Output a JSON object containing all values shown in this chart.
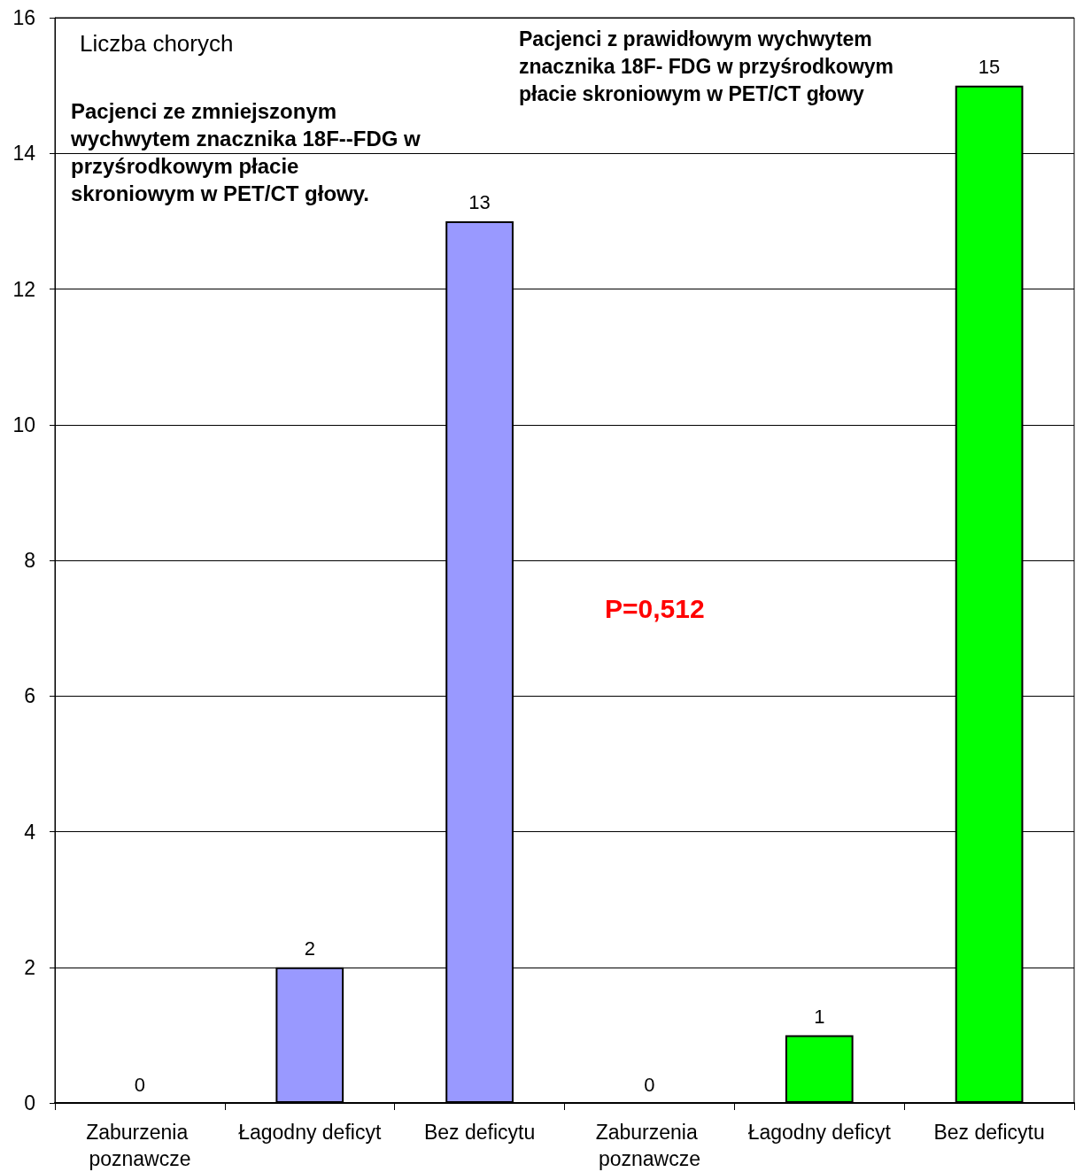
{
  "chart_data": {
    "type": "bar",
    "ylabel": "Liczba chorych",
    "categories": [
      "Zaburzenia poznawcze",
      "Łagodny deficyt",
      "Bez deficytu",
      "Zaburzenia poznawcze",
      "Łagodny deficyt",
      "Bez deficytu"
    ],
    "values": [
      0,
      2,
      13,
      0,
      1,
      15
    ],
    "colors": [
      "#9999ff",
      "#9999ff",
      "#9999ff",
      "#00ff00",
      "#00ff00",
      "#00ff00"
    ],
    "ylim": [
      0,
      16
    ],
    "yticks": [
      0,
      2,
      4,
      6,
      8,
      10,
      12,
      14,
      16
    ],
    "grid": "y",
    "data_labels": true,
    "annotations": [
      "Pacjenci ze zmniejszonym wychwytem znacznika 18F--FDG w przyśrodkowym płacie skroniowym w PET/CT głowy.",
      "Pacjenci z prawidłowym wychwytem znacznika 18F- FDG w przyśrodkowym płacie skroniowym w PET/CT głowy",
      "P=0,512"
    ]
  }
}
